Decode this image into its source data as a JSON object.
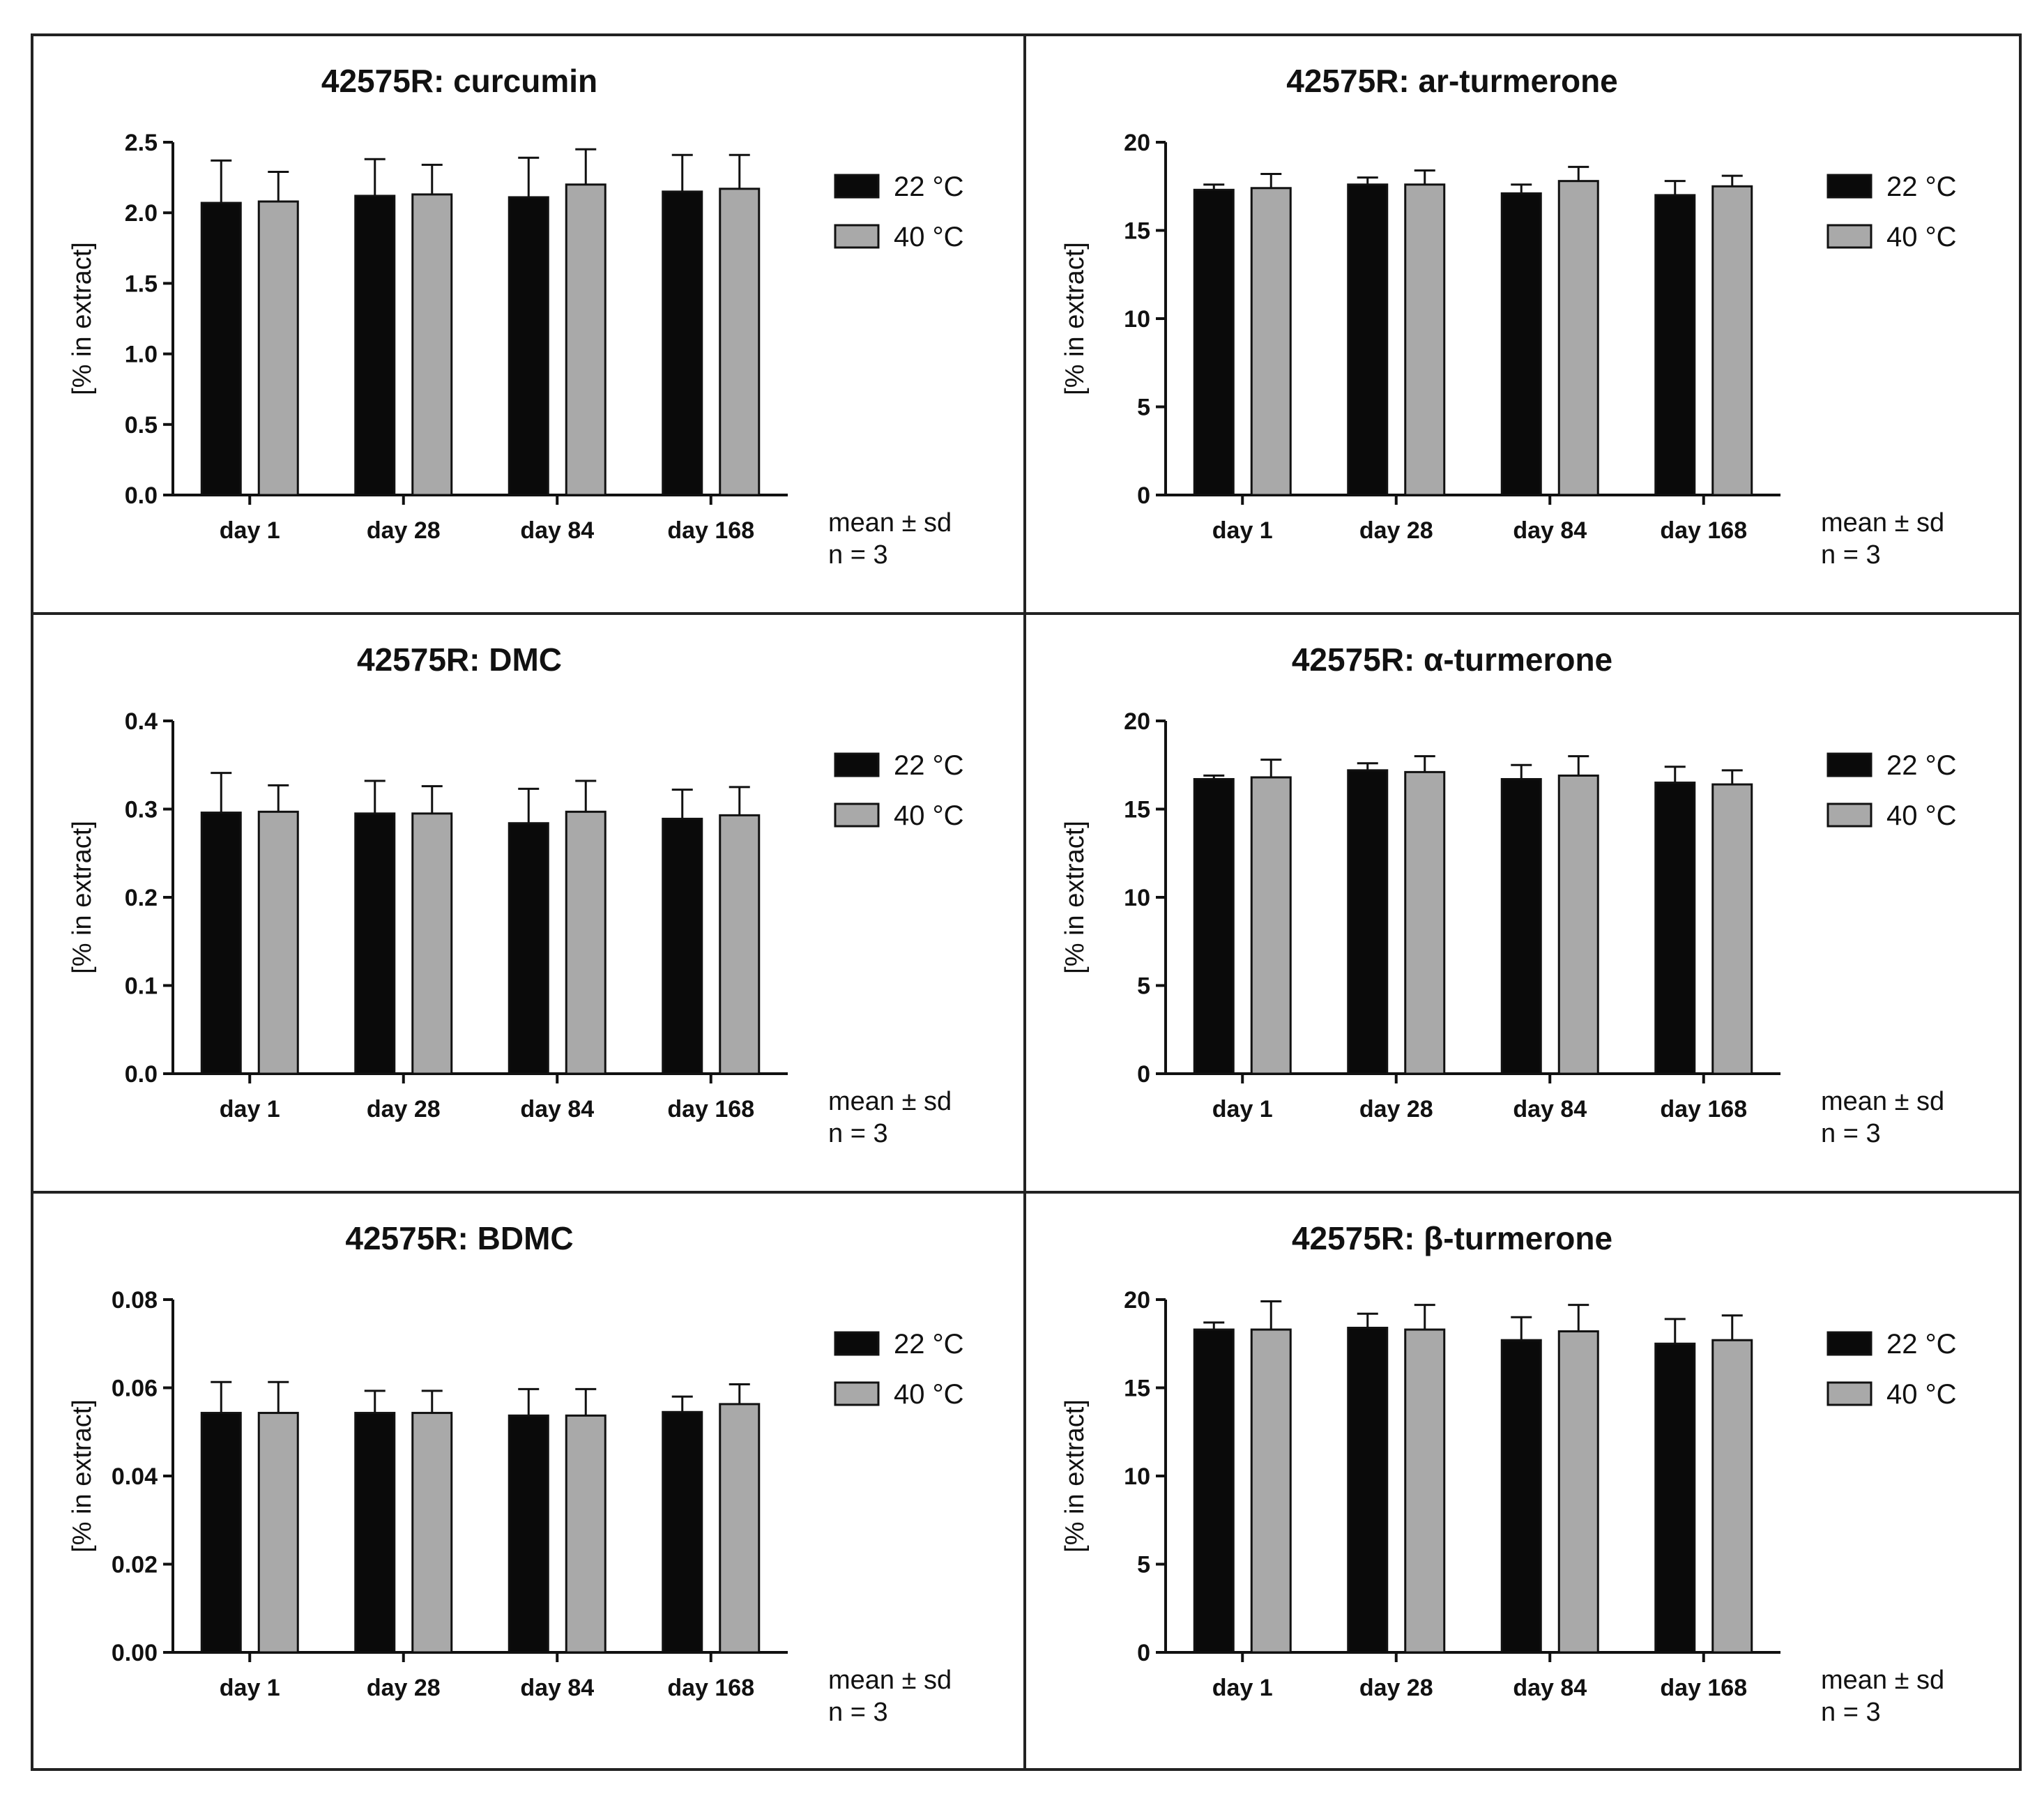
{
  "figure": {
    "panels": [
      {
        "title": "42575R: curcumin",
        "ylabel": "[% in extract]",
        "yticks": [
          "0.0",
          "0.5",
          "1.0",
          "1.5",
          "2.0",
          "2.5"
        ],
        "categories": [
          "day 1",
          "day 28",
          "day 84",
          "day 168"
        ],
        "legend": [
          "22 °C",
          "40 °C"
        ],
        "note1": "mean ± sd",
        "note2": "n = 3"
      },
      {
        "title": "42575R: ar-turmerone",
        "ylabel": "[% in extract]",
        "yticks": [
          "0",
          "5",
          "10",
          "15",
          "20"
        ],
        "categories": [
          "day 1",
          "day 28",
          "day 84",
          "day 168"
        ],
        "legend": [
          "22 °C",
          "40 °C"
        ],
        "note1": "mean ± sd",
        "note2": "n = 3"
      },
      {
        "title": "42575R: DMC",
        "ylabel": "[% in extract]",
        "yticks": [
          "0.0",
          "0.1",
          "0.2",
          "0.3",
          "0.4"
        ],
        "categories": [
          "day 1",
          "day 28",
          "day 84",
          "day 168"
        ],
        "legend": [
          "22 °C",
          "40 °C"
        ],
        "note1": "mean ± sd",
        "note2": "n = 3"
      },
      {
        "title": "42575R: α-turmerone",
        "ylabel": "[% in extract]",
        "yticks": [
          "0",
          "5",
          "10",
          "15",
          "20"
        ],
        "categories": [
          "day 1",
          "day 28",
          "day 84",
          "day 168"
        ],
        "legend": [
          "22 °C",
          "40 °C"
        ],
        "note1": "mean ± sd",
        "note2": "n = 3"
      },
      {
        "title": "42575R: BDMC",
        "ylabel": "[% in extract]",
        "yticks": [
          "0.00",
          "0.02",
          "0.04",
          "0.06",
          "0.08"
        ],
        "categories": [
          "day 1",
          "day 28",
          "day 84",
          "day 168"
        ],
        "legend": [
          "22 °C",
          "40 °C"
        ],
        "note1": "mean ± sd",
        "note2": "n = 3"
      },
      {
        "title": "42575R: β-turmerone",
        "ylabel": "[% in extract]",
        "yticks": [
          "0",
          "5",
          "10",
          "15",
          "20"
        ],
        "categories": [
          "day 1",
          "day 28",
          "day 84",
          "day 168"
        ],
        "legend": [
          "22 °C",
          "40 °C"
        ],
        "note1": "mean ± sd",
        "note2": "n = 3"
      }
    ]
  },
  "colors": {
    "series_22": "#0a0a0a",
    "series_40": "#a9a9a9",
    "axis": "#111111"
  },
  "chart_data": [
    {
      "type": "bar",
      "title": "42575R: curcumin",
      "xlabel": "",
      "ylabel": "[% in extract]",
      "categories": [
        "day 1",
        "day 28",
        "day 84",
        "day 168"
      ],
      "ylim": [
        0,
        2.5
      ],
      "ytick_step": 0.5,
      "series": [
        {
          "name": "22 °C",
          "values": [
            2.07,
            2.12,
            2.11,
            2.15
          ],
          "errors": [
            0.3,
            0.26,
            0.28,
            0.26
          ]
        },
        {
          "name": "40 °C",
          "values": [
            2.08,
            2.13,
            2.2,
            2.17
          ],
          "errors": [
            0.21,
            0.21,
            0.25,
            0.24
          ]
        }
      ],
      "annotations": [
        "mean ± sd",
        "n = 3"
      ]
    },
    {
      "type": "bar",
      "title": "42575R: ar-turmerone",
      "xlabel": "",
      "ylabel": "[% in extract]",
      "categories": [
        "day 1",
        "day 28",
        "day 84",
        "day 168"
      ],
      "ylim": [
        0,
        20
      ],
      "ytick_step": 5,
      "series": [
        {
          "name": "22 °C",
          "values": [
            17.3,
            17.6,
            17.1,
            17.0
          ],
          "errors": [
            0.3,
            0.4,
            0.5,
            0.8
          ]
        },
        {
          "name": "40 °C",
          "values": [
            17.4,
            17.6,
            17.8,
            17.5
          ],
          "errors": [
            0.8,
            0.8,
            0.8,
            0.6
          ]
        }
      ],
      "annotations": [
        "mean ± sd",
        "n = 3"
      ]
    },
    {
      "type": "bar",
      "title": "42575R: DMC",
      "xlabel": "",
      "ylabel": "[% in extract]",
      "categories": [
        "day 1",
        "day 28",
        "day 84",
        "day 168"
      ],
      "ylim": [
        0,
        0.4
      ],
      "ytick_step": 0.1,
      "series": [
        {
          "name": "22 °C",
          "values": [
            0.296,
            0.295,
            0.284,
            0.289
          ],
          "errors": [
            0.045,
            0.037,
            0.039,
            0.033
          ]
        },
        {
          "name": "40 °C",
          "values": [
            0.297,
            0.295,
            0.297,
            0.293
          ],
          "errors": [
            0.03,
            0.031,
            0.035,
            0.032
          ]
        }
      ],
      "annotations": [
        "mean ± sd",
        "n = 3"
      ]
    },
    {
      "type": "bar",
      "title": "42575R: α-turmerone",
      "xlabel": "",
      "ylabel": "[% in extract]",
      "categories": [
        "day 1",
        "day 28",
        "day 84",
        "day 168"
      ],
      "ylim": [
        0,
        20
      ],
      "ytick_step": 5,
      "series": [
        {
          "name": "22 °C",
          "values": [
            16.7,
            17.2,
            16.7,
            16.5
          ],
          "errors": [
            0.2,
            0.4,
            0.8,
            0.9
          ]
        },
        {
          "name": "40 °C",
          "values": [
            16.8,
            17.1,
            16.9,
            16.4
          ],
          "errors": [
            1.0,
            0.9,
            1.1,
            0.8
          ]
        }
      ],
      "annotations": [
        "mean ± sd",
        "n = 3"
      ]
    },
    {
      "type": "bar",
      "title": "42575R: BDMC",
      "xlabel": "",
      "ylabel": "[% in extract]",
      "categories": [
        "day 1",
        "day 28",
        "day 84",
        "day 168"
      ],
      "ylim": [
        0,
        0.08
      ],
      "ytick_step": 0.02,
      "series": [
        {
          "name": "22 °C",
          "values": [
            0.0543,
            0.0543,
            0.0537,
            0.0545
          ],
          "errors": [
            0.007,
            0.005,
            0.006,
            0.0035
          ]
        },
        {
          "name": "40 °C",
          "values": [
            0.0543,
            0.0543,
            0.0537,
            0.0563
          ],
          "errors": [
            0.007,
            0.005,
            0.006,
            0.0045
          ]
        }
      ],
      "annotations": [
        "mean ± sd",
        "n = 3"
      ]
    },
    {
      "type": "bar",
      "title": "42575R: β-turmerone",
      "xlabel": "",
      "ylabel": "[% in extract]",
      "categories": [
        "day 1",
        "day 28",
        "day 84",
        "day 168"
      ],
      "ylim": [
        0,
        20
      ],
      "ytick_step": 5,
      "series": [
        {
          "name": "22 °C",
          "values": [
            18.3,
            18.4,
            17.7,
            17.5
          ],
          "errors": [
            0.4,
            0.8,
            1.3,
            1.4
          ]
        },
        {
          "name": "40 °C",
          "values": [
            18.3,
            18.3,
            18.2,
            17.7
          ],
          "errors": [
            1.6,
            1.4,
            1.5,
            1.4
          ]
        }
      ],
      "annotations": [
        "mean ± sd",
        "n = 3"
      ]
    }
  ]
}
